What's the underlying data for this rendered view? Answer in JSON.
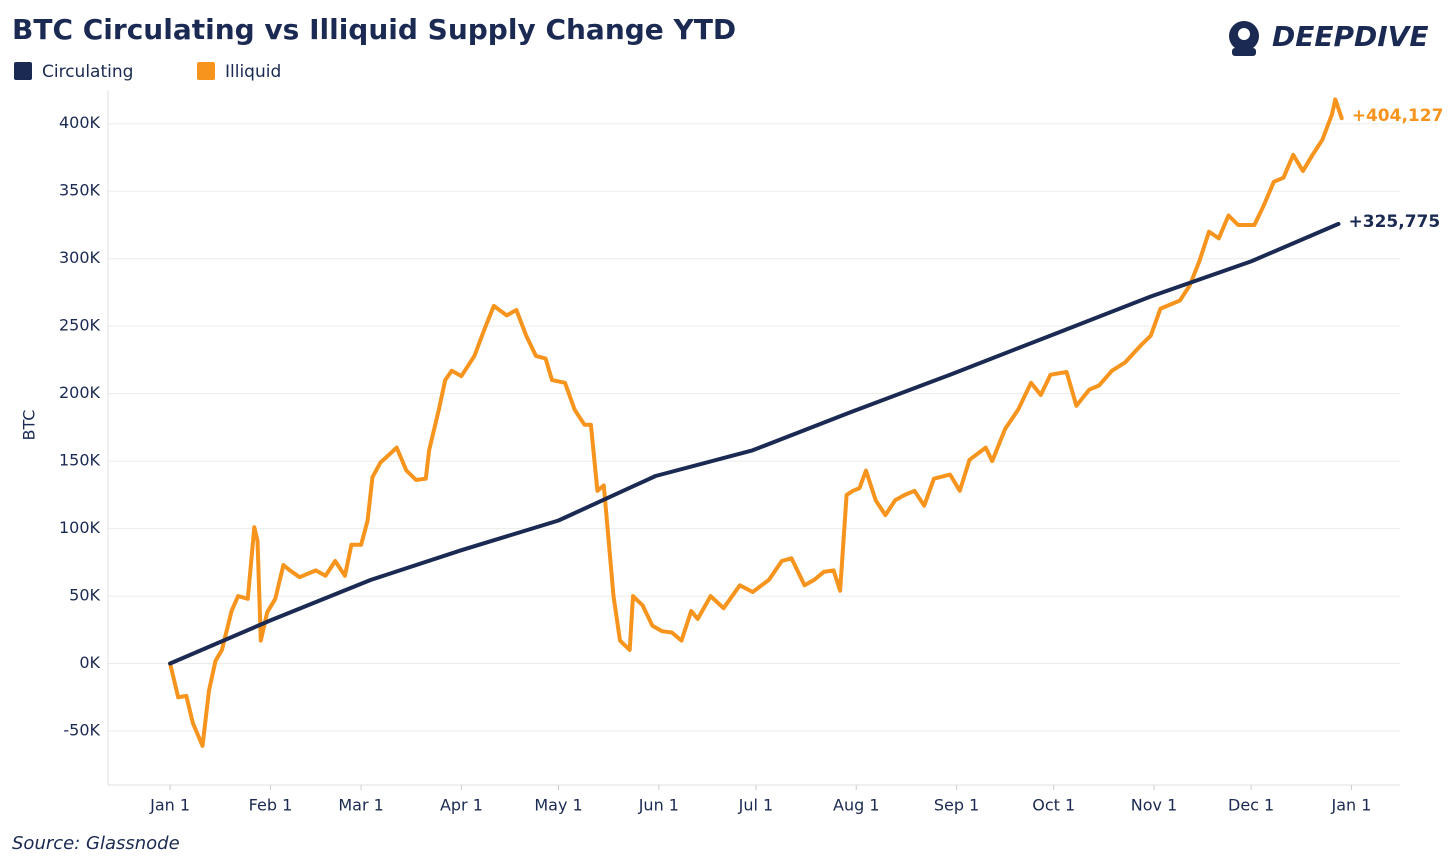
{
  "chart_data": {
    "type": "line",
    "title": "BTC Circulating vs Illiquid Supply Change YTD",
    "brand": "DEEPDIVE",
    "source": "Source: Glassnode",
    "y_label": "BTC",
    "xlim": [
      -19.2,
      380
    ],
    "xticks": [
      {
        "value": 0,
        "label": "Jan 1"
      },
      {
        "value": 31,
        "label": "Feb 1"
      },
      {
        "value": 59,
        "label": "Mar 1"
      },
      {
        "value": 90,
        "label": "Apr 1"
      },
      {
        "value": 120,
        "label": "May 1"
      },
      {
        "value": 151,
        "label": "Jun 1"
      },
      {
        "value": 181,
        "label": "Jul 1"
      },
      {
        "value": 212,
        "label": "Aug 1"
      },
      {
        "value": 243,
        "label": "Sep 1"
      },
      {
        "value": 273,
        "label": "Oct 1"
      },
      {
        "value": 304,
        "label": "Nov 1"
      },
      {
        "value": 334,
        "label": "Dec 1"
      },
      {
        "value": 365,
        "label": "Jan 1"
      }
    ],
    "ylim": [
      -90000,
      425000
    ],
    "yticks": [
      {
        "value": -50000,
        "label": "-50K"
      },
      {
        "value": 0,
        "label": "0K"
      },
      {
        "value": 50000,
        "label": "50K"
      },
      {
        "value": 100000,
        "label": "100K"
      },
      {
        "value": 150000,
        "label": "150K"
      },
      {
        "value": 200000,
        "label": "200K"
      },
      {
        "value": 250000,
        "label": "250K"
      },
      {
        "value": 300000,
        "label": "300K"
      },
      {
        "value": 350000,
        "label": "350K"
      },
      {
        "value": 400000,
        "label": "400K"
      }
    ],
    "grid": true,
    "series": [
      {
        "name": "Circulating",
        "color": "#1b2a52",
        "end_label": "+325,775",
        "x": [
          0,
          31,
          62,
          90,
          120,
          150,
          180,
          210,
          241,
          272,
          303,
          334,
          361
        ],
        "values": [
          0,
          32000,
          62000,
          84000,
          106000,
          139000,
          158000,
          186000,
          214000,
          243000,
          272000,
          298000,
          325775
        ]
      },
      {
        "name": "Illiquid",
        "color": "#f7941d",
        "end_label": "+404,127",
        "x": [
          0,
          2.5,
          5,
          7,
          10,
          12,
          14,
          16,
          19,
          21,
          24,
          26,
          27,
          28,
          30,
          32.5,
          35,
          37,
          40,
          45,
          48,
          51,
          54,
          56,
          59,
          61,
          62.5,
          65,
          70,
          73,
          76,
          79,
          80,
          83,
          85,
          87,
          90,
          94,
          97,
          100,
          104,
          107,
          110,
          113,
          116,
          118,
          122,
          125,
          128,
          130,
          132,
          134,
          137,
          139,
          142,
          143,
          146,
          149,
          152,
          155,
          158,
          161,
          163,
          167,
          171,
          176,
          180,
          185,
          189,
          192,
          196,
          199,
          202,
          205,
          207,
          209,
          211,
          213,
          215,
          218,
          221,
          224,
          227,
          230,
          233,
          236,
          241,
          244,
          247,
          252,
          254,
          258,
          262,
          266,
          269,
          272,
          277,
          280,
          284,
          287,
          291,
          295,
          300,
          303,
          306,
          309,
          312,
          315,
          318,
          321,
          324,
          327,
          330,
          335,
          338,
          341,
          344,
          347,
          350,
          353,
          356,
          359,
          360,
          362
        ],
        "values": [
          0,
          -25000,
          -24000,
          -44000,
          -61000,
          -20000,
          2000,
          10000,
          39000,
          50000,
          48000,
          101000,
          91000,
          17000,
          38000,
          48000,
          73000,
          69000,
          64000,
          69000,
          65000,
          76000,
          65000,
          88000,
          88000,
          106000,
          138000,
          149000,
          160000,
          143000,
          136000,
          137000,
          158000,
          188000,
          210000,
          217000,
          213000,
          228000,
          247000,
          265000,
          258000,
          262000,
          243000,
          228000,
          226000,
          210000,
          208000,
          188000,
          177000,
          177000,
          128000,
          132000,
          50000,
          17000,
          10000,
          50000,
          43000,
          28000,
          24000,
          23000,
          17000,
          39000,
          33000,
          50000,
          41000,
          58000,
          53000,
          62000,
          76000,
          78000,
          58000,
          62000,
          68000,
          69000,
          54000,
          125000,
          128000,
          130000,
          143000,
          121000,
          110000,
          121000,
          125000,
          128000,
          117000,
          137000,
          140000,
          128000,
          151000,
          160000,
          150000,
          174000,
          188000,
          208000,
          199000,
          214000,
          216000,
          191000,
          203000,
          206000,
          217000,
          223000,
          236000,
          243000,
          263000,
          266000,
          269000,
          280000,
          298000,
          320000,
          315000,
          332000,
          325000,
          325000,
          340000,
          357000,
          360000,
          377000,
          365000,
          377000,
          388000,
          407000,
          418000,
          404127
        ]
      }
    ]
  }
}
